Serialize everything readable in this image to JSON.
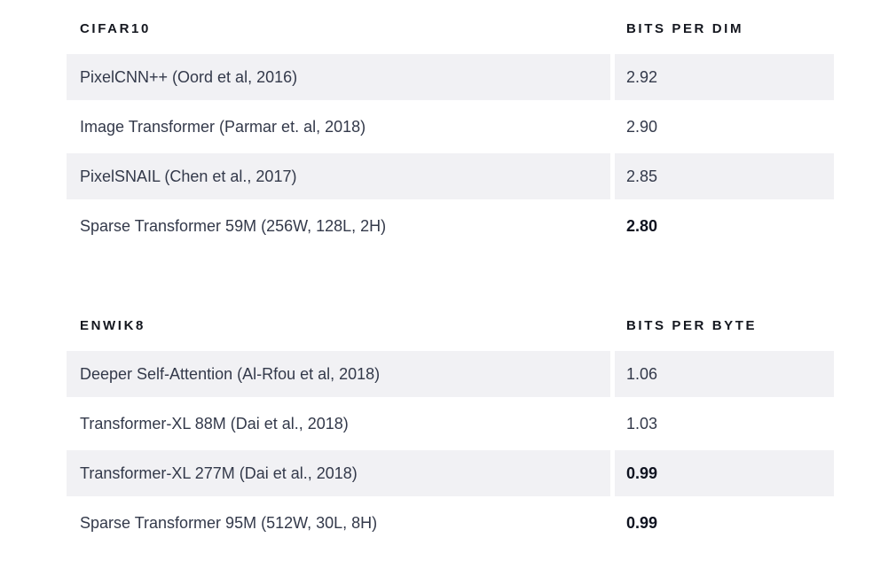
{
  "chart_data": [
    {
      "type": "table",
      "title": "CIFAR10",
      "metric_label": "BITS PER DIM",
      "rows": [
        {
          "model": "PixelCNN++ (Oord et al, 2016)",
          "value": "2.92",
          "emphasized": false,
          "shaded": true
        },
        {
          "model": "Image Transformer (Parmar et. al, 2018)",
          "value": "2.90",
          "emphasized": false,
          "shaded": false
        },
        {
          "model": "PixelSNAIL (Chen et al., 2017)",
          "value": "2.85",
          "emphasized": false,
          "shaded": true
        },
        {
          "model": "Sparse Transformer 59M (256W, 128L, 2H)",
          "value": "2.80",
          "emphasized": true,
          "shaded": false
        }
      ]
    },
    {
      "type": "table",
      "title": "ENWIK8",
      "metric_label": "BITS PER BYTE",
      "rows": [
        {
          "model": "Deeper Self-Attention (Al-Rfou et al, 2018)",
          "value": "1.06",
          "emphasized": false,
          "shaded": true
        },
        {
          "model": "Transformer-XL 88M (Dai et al., 2018)",
          "value": "1.03",
          "emphasized": false,
          "shaded": false
        },
        {
          "model": "Transformer-XL 277M (Dai et al., 2018)",
          "value": "0.99",
          "emphasized": true,
          "shaded": true
        },
        {
          "model": "Sparse Transformer 95M (512W, 30L, 8H)",
          "value": "0.99",
          "emphasized": true,
          "shaded": false
        }
      ]
    }
  ],
  "colors": {
    "background": "#ffffff",
    "row_shade": "#f1f1f4",
    "header_text": "#14171f",
    "body_text": "#33394a",
    "emphasis_text": "#0f1320"
  }
}
